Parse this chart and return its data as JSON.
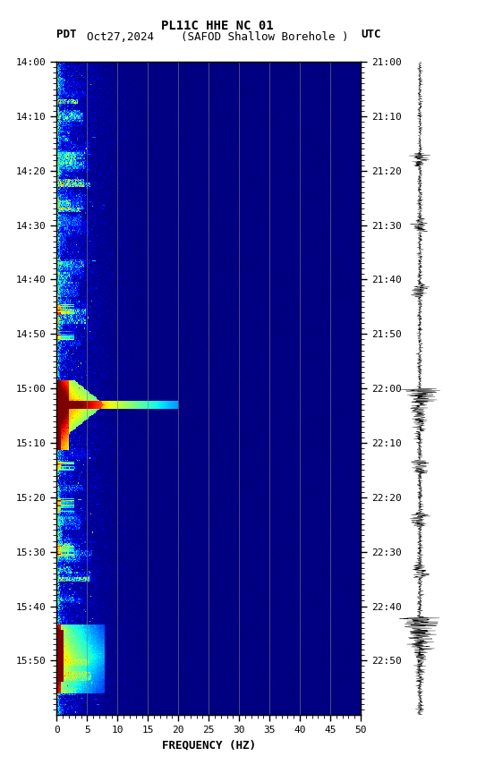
{
  "title_line1": "PL11C HHE NC 01",
  "title_line2": "Oct27,2024    (SAFOD Shallow Borehole )",
  "left_label": "PDT",
  "right_label": "UTC",
  "xlabel": "FREQUENCY (HZ)",
  "freq_min": 0,
  "freq_max": 50,
  "ytick_pdt": [
    "14:00",
    "14:10",
    "14:20",
    "14:30",
    "14:40",
    "14:50",
    "15:00",
    "15:10",
    "15:20",
    "15:30",
    "15:40",
    "15:50"
  ],
  "ytick_utc": [
    "21:00",
    "21:10",
    "21:20",
    "21:30",
    "21:40",
    "21:50",
    "22:00",
    "22:10",
    "22:20",
    "22:30",
    "22:40",
    "22:50"
  ],
  "xticks": [
    0,
    5,
    10,
    15,
    20,
    25,
    30,
    35,
    40,
    45,
    50
  ],
  "grid_lines_freq": [
    5,
    10,
    15,
    20,
    25,
    30,
    35,
    40,
    45
  ],
  "background_color": "#ffffff",
  "colormap": "jet",
  "fig_width": 5.52,
  "fig_height": 8.64,
  "dpi": 100,
  "seed": 42
}
